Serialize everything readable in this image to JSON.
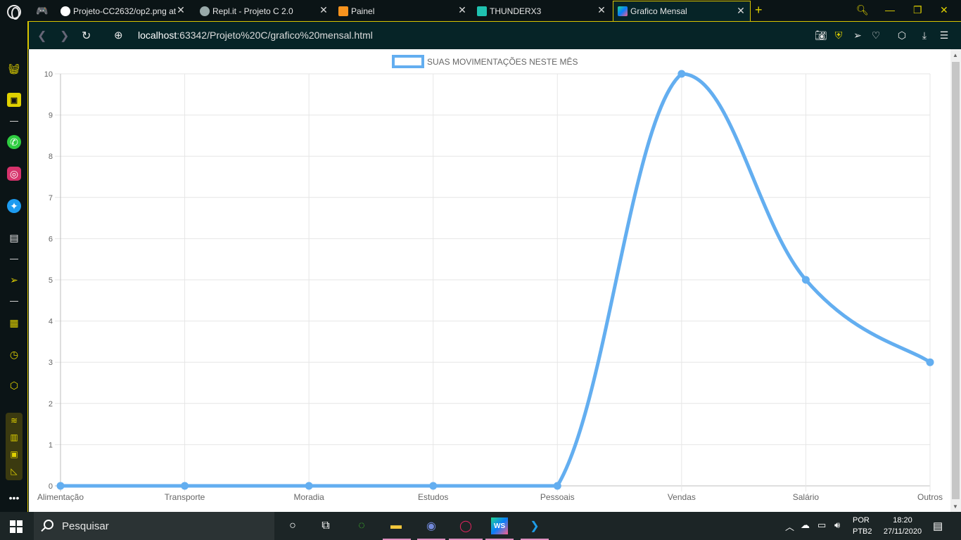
{
  "browser": {
    "tabs": [
      {
        "title": "Projeto-CC2632/op2.png at",
        "icon": "github-icon"
      },
      {
        "title": "Repl.it - Projeto C 2.0",
        "icon": "replit-icon"
      },
      {
        "title": "Painel",
        "icon": "moodle-icon"
      },
      {
        "title": "THUNDERX3",
        "icon": "thunderx3-icon"
      },
      {
        "title": "Grafico Mensal",
        "icon": "webstorm-icon",
        "active": true
      }
    ],
    "url_host": "localhost",
    "url_rest": ":63342/Projeto%20C/grafico%20mensal.html"
  },
  "chart_data": {
    "type": "line",
    "legend": "SUAS MOVIMENTAÇÕES NESTE MÊS",
    "categories": [
      "Alimentação",
      "Transporte",
      "Moradia",
      "Estudos",
      "Pessoais",
      "Vendas",
      "Salário",
      "Outros"
    ],
    "series": [
      {
        "name": "SUAS MOVIMENTAÇÕES NESTE MÊS",
        "values": [
          0,
          0,
          0,
          0,
          0,
          10,
          5,
          3
        ],
        "color": "#63aef0"
      }
    ],
    "yticks": [
      "0",
      "1",
      "2",
      "3",
      "4",
      "5",
      "6",
      "7",
      "8",
      "9",
      "10"
    ],
    "ylim": [
      0,
      10
    ],
    "grid": true,
    "curve": "smooth"
  },
  "taskbar": {
    "search_placeholder": "Pesquisar",
    "lang_top": "POR",
    "lang_bottom": "PTB2",
    "time": "18:20",
    "date": "27/11/2020"
  },
  "colors": {
    "accent": "#d9c400",
    "browser_bg": "#062427",
    "line": "#63aef0"
  }
}
